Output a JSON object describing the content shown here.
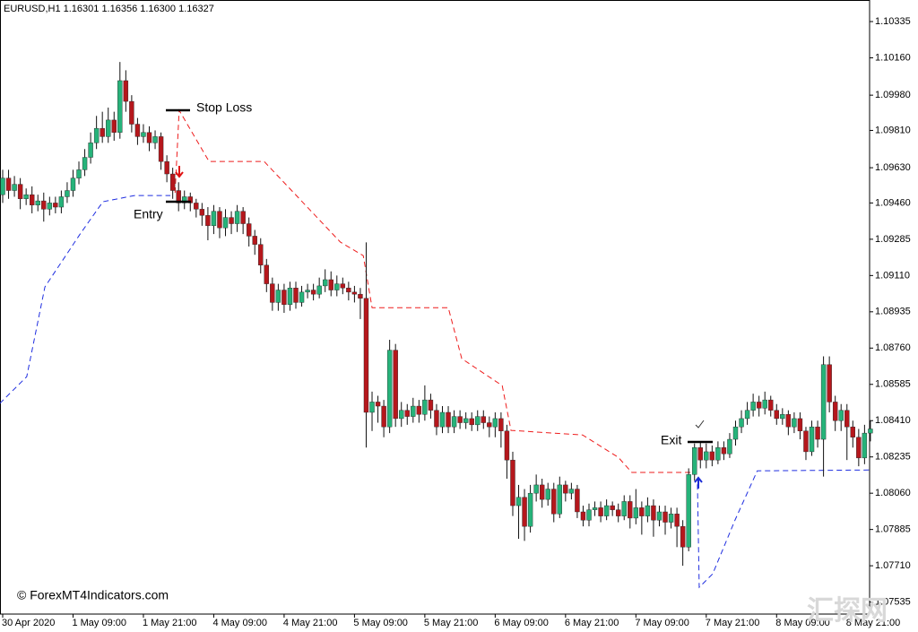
{
  "chart_data": {
    "type": "candlestick",
    "header": "EURUSD,H1  1.16301 1.16356 1.16300 1.16327",
    "annotations": [
      "Stop Loss",
      "Entry",
      "Exit",
      "© ForexMT4Indicators.com"
    ],
    "watermark": "汇探网",
    "up_color": "#26b37a",
    "down_color": "#b5171c",
    "ylim": [
      1.07477,
      1.10439
    ],
    "yticks": [
      1.10335,
      {
        "value": 1.1016,
        "label": "1.10160"
      },
      {
        "value": 1.0998,
        "label": "1.09980"
      },
      {
        "value": 1.0981,
        "label": "1.09810"
      },
      {
        "value": 1.0963,
        "label": "1.09630"
      },
      {
        "value": 1.0946,
        "label": "1.09460"
      },
      1.09285,
      {
        "value": 1.0911,
        "label": "1.09110"
      },
      1.08935,
      {
        "value": 1.0876,
        "label": "1.08760"
      },
      1.08585,
      {
        "value": 1.0841,
        "label": "1.08410"
      },
      1.08235,
      {
        "value": 1.0806,
        "label": "1.08060"
      },
      1.07885,
      {
        "value": 1.0771,
        "label": "1.07710"
      },
      1.07535
    ],
    "categories": [
      "30 Apr 2020",
      null,
      null,
      null,
      null,
      null,
      null,
      null,
      null,
      null,
      null,
      null,
      "1 May 09:00",
      null,
      null,
      null,
      null,
      null,
      null,
      null,
      null,
      null,
      null,
      null,
      "1 May 21:00",
      null,
      null,
      null,
      null,
      null,
      null,
      null,
      null,
      null,
      null,
      null,
      "4 May 09:00",
      null,
      null,
      null,
      null,
      null,
      null,
      null,
      null,
      null,
      null,
      null,
      "4 May 21:00",
      null,
      null,
      null,
      null,
      null,
      null,
      null,
      null,
      null,
      null,
      null,
      "5 May 09:00",
      null,
      null,
      null,
      null,
      null,
      null,
      null,
      null,
      null,
      null,
      null,
      "5 May 21:00",
      null,
      null,
      null,
      null,
      null,
      null,
      null,
      null,
      null,
      null,
      null,
      "6 May 09:00",
      null,
      null,
      null,
      null,
      null,
      null,
      null,
      null,
      null,
      null,
      null,
      "6 May 21:00",
      null,
      null,
      null,
      null,
      null,
      null,
      null,
      null,
      null,
      null,
      null,
      "7 May 09:00",
      null,
      null,
      null,
      null,
      null,
      null,
      null,
      null,
      null,
      null,
      null,
      "7 May 21:00",
      null,
      null,
      null,
      null,
      null,
      null,
      null,
      null,
      null,
      null,
      null,
      "8 May 09:00",
      null,
      null,
      null,
      null,
      null,
      null,
      null,
      null,
      null,
      null,
      null,
      "8 May 21:00",
      null,
      null,
      null,
      null
    ],
    "open": [
      1.095,
      1.0958,
      1.0952,
      1.0955,
      1.0948,
      1.095,
      1.0945,
      1.0947,
      1.0943,
      1.0946,
      1.0944,
      1.0949,
      1.0952,
      1.0958,
      1.0962,
      1.0968,
      1.0975,
      1.0982,
      1.0978,
      1.0986,
      1.098,
      1.1005,
      1.0995,
      1.0984,
      1.0978,
      1.098,
      1.0975,
      1.0978,
      1.0966,
      1.096,
      1.0952,
      1.0946,
      1.0949,
      1.0946,
      1.0943,
      1.094,
      1.0935,
      1.0942,
      1.0934,
      1.0939,
      1.0936,
      1.0942,
      1.0936,
      1.093,
      1.0926,
      1.0916,
      1.0907,
      1.0898,
      1.0904,
      1.0897,
      1.0905,
      1.0898,
      1.0903,
      1.0904,
      1.0902,
      1.0906,
      1.0909,
      1.0904,
      1.0907,
      1.0905,
      1.0903,
      1.0902,
      1.09,
      1.0845,
      1.085,
      1.0848,
      1.0838,
      1.0875,
      1.0842,
      1.0846,
      1.0843,
      1.0848,
      1.0844,
      1.0851,
      1.0846,
      1.0838,
      1.0845,
      1.0838,
      1.0843,
      1.084,
      1.0842,
      1.0839,
      1.0843,
      1.084,
      1.0838,
      1.0842,
      1.0836,
      1.0822,
      1.08,
      1.0804,
      1.079,
      1.0806,
      1.081,
      1.0803,
      1.0808,
      1.0796,
      1.081,
      1.0806,
      1.0808,
      1.0797,
      1.0793,
      1.0798,
      1.0799,
      1.0795,
      1.08,
      1.0798,
      1.0795,
      1.0802,
      1.0794,
      1.0799,
      1.0795,
      1.08,
      1.0793,
      1.0797,
      1.0792,
      1.0796,
      1.079,
      1.078,
      1.0815,
      1.0828,
      1.0822,
      1.0826,
      1.0822,
      1.0828,
      1.0825,
      1.0832,
      1.0838,
      1.0842,
      1.0846,
      1.085,
      1.0847,
      1.0851,
      1.0846,
      1.0842,
      1.0844,
      1.0838,
      1.0842,
      1.0836,
      1.0826,
      1.0838,
      1.0832,
      1.0868,
      1.085,
      1.0841,
      1.0846,
      1.0838,
      1.0833,
      1.0823,
      1.0835
    ],
    "high": [
      1.0962,
      1.0962,
      1.0959,
      1.0958,
      1.0953,
      1.0954,
      1.095,
      1.0951,
      1.0949,
      1.0949,
      1.0952,
      1.0956,
      1.0962,
      1.0966,
      1.0972,
      1.098,
      1.0988,
      1.099,
      1.0992,
      1.099,
      1.1014,
      1.101,
      1.0998,
      1.0987,
      1.0984,
      1.0983,
      1.0981,
      1.098,
      1.0969,
      1.0963,
      1.0956,
      1.0952,
      1.0951,
      1.0948,
      1.0946,
      1.0944,
      1.0945,
      1.0944,
      1.0943,
      1.0942,
      1.0945,
      1.0944,
      1.0939,
      1.0933,
      1.0929,
      1.0919,
      1.091,
      1.0907,
      1.0907,
      1.0908,
      1.0908,
      1.0906,
      1.0907,
      1.0907,
      1.091,
      1.0914,
      1.0913,
      1.0911,
      1.091,
      1.0908,
      1.0906,
      1.0905,
      1.0927,
      1.0855,
      1.0853,
      1.0851,
      1.088,
      1.0878,
      1.085,
      1.0849,
      1.0852,
      1.0851,
      1.0858,
      1.0854,
      1.0849,
      1.0848,
      1.0848,
      1.0846,
      1.0846,
      1.0845,
      1.0845,
      1.0846,
      1.0846,
      1.0843,
      1.0845,
      1.0845,
      1.0839,
      1.0826,
      1.081,
      1.0808,
      1.081,
      1.0815,
      1.0813,
      1.0811,
      1.0811,
      1.0814,
      1.0812,
      1.0811,
      1.081,
      1.08,
      1.0801,
      1.0802,
      1.0802,
      1.0803,
      1.0802,
      1.0801,
      1.0805,
      1.0805,
      1.0808,
      1.0802,
      1.0804,
      1.0803,
      1.08,
      1.08,
      1.0799,
      1.0799,
      1.0793,
      1.0818,
      1.083,
      1.0831,
      1.083,
      1.0829,
      1.0831,
      1.0831,
      1.0835,
      1.0841,
      1.0846,
      1.085,
      1.0854,
      1.0853,
      1.0855,
      1.0853,
      1.0849,
      1.0847,
      1.0846,
      1.0845,
      1.0845,
      1.0838,
      1.0841,
      1.0841,
      1.0872,
      1.0872,
      1.0853,
      1.0849,
      1.0849,
      1.0841,
      1.0837,
      1.0839,
      1.0841
    ],
    "low": [
      1.0946,
      1.0948,
      1.0949,
      1.0943,
      1.0945,
      1.0941,
      1.0942,
      1.0937,
      1.094,
      1.0941,
      1.0941,
      1.0946,
      1.0949,
      1.0955,
      1.0959,
      1.0965,
      1.0972,
      1.0975,
      1.0975,
      1.0976,
      1.0977,
      1.099,
      1.098,
      1.0974,
      1.0975,
      1.0971,
      1.0972,
      1.0962,
      1.0956,
      1.0948,
      1.0942,
      1.0943,
      1.0942,
      1.0939,
      1.0935,
      1.0928,
      1.0931,
      1.0929,
      1.093,
      1.0931,
      1.0932,
      1.0931,
      1.0925,
      1.0921,
      1.0912,
      1.0903,
      1.0894,
      1.0894,
      1.0893,
      1.0894,
      1.0895,
      1.0896,
      1.09,
      1.0899,
      1.09,
      1.0903,
      1.0901,
      1.0901,
      1.0902,
      1.0899,
      1.0898,
      1.089,
      1.0828,
      1.0836,
      1.084,
      1.0833,
      1.0835,
      1.0838,
      1.0838,
      1.0839,
      1.084,
      1.084,
      1.0841,
      1.0842,
      1.0834,
      1.0835,
      1.0835,
      1.0835,
      1.0837,
      1.0837,
      1.0836,
      1.0836,
      1.0837,
      1.0833,
      1.0833,
      1.0828,
      1.0813,
      1.0795,
      1.0784,
      1.0783,
      1.0787,
      1.0802,
      1.0799,
      1.08,
      1.0792,
      1.0794,
      1.0802,
      1.0803,
      1.0794,
      1.079,
      1.079,
      1.0795,
      1.0792,
      1.0793,
      1.0795,
      1.0792,
      1.0793,
      1.0789,
      1.0791,
      1.0786,
      1.0792,
      1.0785,
      1.079,
      1.0786,
      1.0789,
      1.078,
      1.0771,
      1.0778,
      1.0812,
      1.0818,
      1.0818,
      1.0819,
      1.082,
      1.0822,
      1.0823,
      1.0829,
      1.0835,
      1.0839,
      1.0843,
      1.0843,
      1.0844,
      1.0843,
      1.0839,
      1.0839,
      1.0834,
      1.0835,
      1.0832,
      1.0822,
      1.0824,
      1.0828,
      1.0814,
      1.0845,
      1.0836,
      1.0836,
      1.0822,
      1.0828,
      1.0819,
      1.082,
      1.0831
    ],
    "close": [
      1.0958,
      1.0952,
      1.0955,
      1.0948,
      1.095,
      1.0945,
      1.0947,
      1.0943,
      1.0946,
      1.0944,
      1.0949,
      1.0952,
      1.0958,
      1.0962,
      1.0968,
      1.0975,
      1.0982,
      1.0978,
      1.0986,
      1.098,
      1.1005,
      1.0995,
      1.0984,
      1.0978,
      1.098,
      1.0975,
      1.0978,
      1.0966,
      1.096,
      1.0952,
      1.0946,
      1.0949,
      1.0946,
      1.0943,
      1.094,
      1.0935,
      1.0942,
      1.0934,
      1.0939,
      1.0936,
      1.0942,
      1.0936,
      1.093,
      1.0926,
      1.0916,
      1.0907,
      1.0898,
      1.0904,
      1.0897,
      1.0905,
      1.0898,
      1.0903,
      1.0904,
      1.0902,
      1.0906,
      1.0909,
      1.0904,
      1.0907,
      1.0905,
      1.0903,
      1.0902,
      1.09,
      1.0845,
      1.085,
      1.0848,
      1.0838,
      1.0875,
      1.0842,
      1.0846,
      1.0843,
      1.0848,
      1.0844,
      1.0851,
      1.0846,
      1.0838,
      1.0845,
      1.0838,
      1.0843,
      1.084,
      1.0842,
      1.0839,
      1.0843,
      1.084,
      1.0838,
      1.0842,
      1.0836,
      1.0822,
      1.08,
      1.0804,
      1.079,
      1.0806,
      1.081,
      1.0803,
      1.0808,
      1.0796,
      1.081,
      1.0806,
      1.0808,
      1.0797,
      1.0793,
      1.0798,
      1.0799,
      1.0795,
      1.08,
      1.0798,
      1.0795,
      1.0802,
      1.0794,
      1.0799,
      1.0795,
      1.08,
      1.0793,
      1.0797,
      1.0792,
      1.0796,
      1.079,
      1.078,
      1.0815,
      1.0828,
      1.0822,
      1.0826,
      1.0822,
      1.0828,
      1.0825,
      1.0832,
      1.0838,
      1.0842,
      1.0846,
      1.085,
      1.0847,
      1.0851,
      1.0846,
      1.0842,
      1.0844,
      1.0838,
      1.0842,
      1.0836,
      1.0826,
      1.0838,
      1.0832,
      1.0868,
      1.085,
      1.0841,
      1.0846,
      1.0838,
      1.0833,
      1.0823,
      1.0835,
      1.0837
    ],
    "lines": [
      {
        "color": "#ee1c1c",
        "style": "dashed",
        "x": [
          29.4,
          30.1,
          35.2,
          44.6,
          57.6,
          61.5,
          63,
          76,
          78.3,
          85.2,
          86.7,
          98.9,
          105,
          107.3,
          118
        ],
        "values": [
          1.09509,
          1.09907,
          1.0966,
          1.0966,
          1.09271,
          1.09206,
          1.08955,
          1.08955,
          1.08709,
          1.08579,
          1.08363,
          1.08341,
          1.08233,
          1.0816,
          1.0816
        ]
      },
      {
        "color": "#1f2ee0",
        "style": "dashed",
        "x": [
          -0.5,
          4.1,
          7.2,
          13.3,
          17.1,
          22.5,
          28.6
        ],
        "values": [
          1.08493,
          1.08622,
          1.09055,
          1.09314,
          1.09466,
          1.09496,
          1.09496
        ]
      },
      {
        "color": "#1f2ee0",
        "style": "dashed",
        "x": [
          118.5,
          118.8,
          121.1,
          124.9,
          128.7,
          147.9
        ],
        "values": [
          1.08103,
          1.07606,
          1.07671,
          1.0793,
          1.08168,
          1.08172
        ]
      }
    ]
  }
}
